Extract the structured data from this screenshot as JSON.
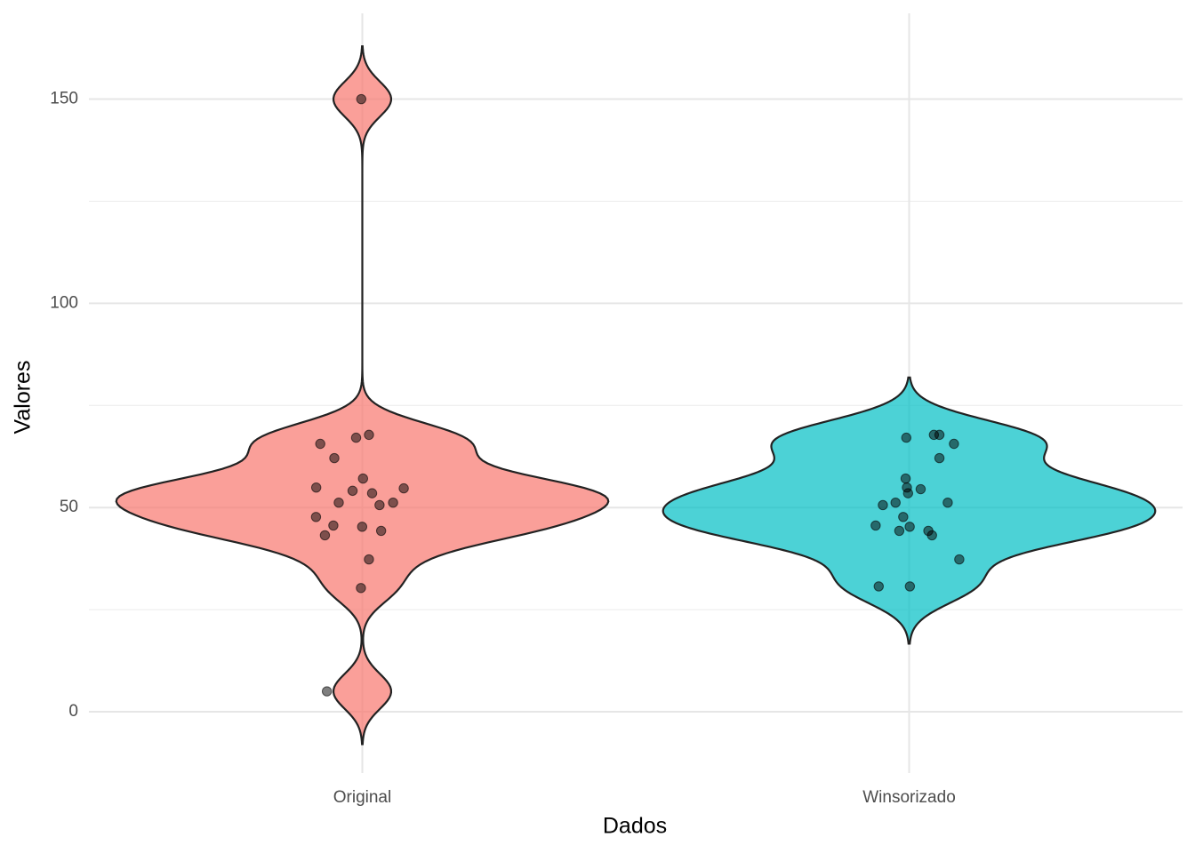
{
  "chart_data": {
    "type": "violin",
    "x_label": "Dados",
    "y_label": "Valores",
    "categories": [
      "Original",
      "Winsorizado"
    ],
    "groups": [
      {
        "color": "#F8766D",
        "values": [
          150,
          67.8,
          65.6,
          62.1,
          67.1,
          57.1,
          54.9,
          54.7,
          53.5,
          54.1,
          51.2,
          51.2,
          50.6,
          47.7,
          45.3,
          45.6,
          44.3,
          43.2,
          37.3,
          30.3,
          5
        ]
      },
      {
        "color": "#00BFC4",
        "values": [
          67.8,
          67.1,
          67.8,
          65.6,
          62.1,
          57.1,
          54.9,
          54.5,
          53.5,
          51.2,
          51.2,
          50.6,
          47.7,
          45.3,
          45.6,
          44.3,
          44.3,
          43.2,
          37.3,
          30.7,
          30.7
        ]
      }
    ],
    "point_color": "#000000",
    "ylim": [
      -15,
      171
    ],
    "yticks": [
      0,
      50,
      100,
      150
    ],
    "minor_yticks": [
      25,
      75,
      125
    ],
    "grid": true
  }
}
